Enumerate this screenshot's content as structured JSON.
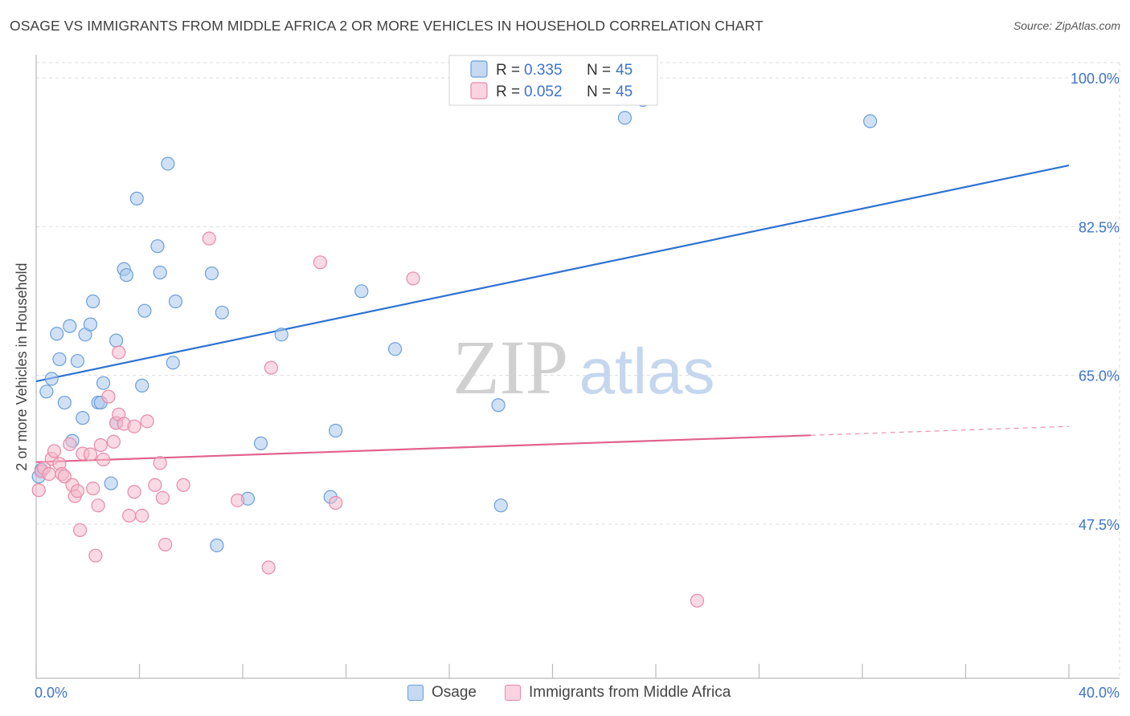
{
  "header": {
    "title": "OSAGE VS IMMIGRANTS FROM MIDDLE AFRICA 2 OR MORE VEHICLES IN HOUSEHOLD CORRELATION CHART",
    "source": "Source: ZipAtlas.com"
  },
  "watermark": {
    "zip": "ZIP",
    "atlas": "atlas"
  },
  "colors": {
    "blue_fill": "#a9c8ee",
    "blue_stroke": "#6b9fd8",
    "blue_line": "#2d72d2",
    "pink_fill": "#f4b9cc",
    "pink_stroke": "#e88aa8",
    "pink_line": "#e0628d",
    "axis_label": "#3f74c9",
    "grid": "#dddddd"
  },
  "chart_data": {
    "type": "scatter",
    "title": "OSAGE VS IMMIGRANTS FROM MIDDLE AFRICA 2 OR MORE VEHICLES IN HOUSEHOLD CORRELATION CHART",
    "xlabel": "",
    "ylabel": "2 or more Vehicles in Household",
    "xlim": [
      0,
      40
    ],
    "ylim": [
      30,
      102
    ],
    "x_tick_labels": [
      "0.0%",
      "40.0%"
    ],
    "y_ticks": [
      47.5,
      65.0,
      82.5,
      100.0
    ],
    "y_tick_labels": [
      "47.5%",
      "65.0%",
      "82.5%",
      "100.0%"
    ],
    "legend_position": "top-center",
    "series": [
      {
        "name": "Osage",
        "color": "blue",
        "r_label": "R =",
        "r_value": "0.335",
        "n_label": "N =",
        "n_value": "45",
        "trend": {
          "x_start": 0,
          "y_start": 64.3,
          "x_end": 40,
          "y_end": 89.7,
          "dashed_from": null
        },
        "points": [
          [
            0.1,
            53.1
          ],
          [
            0.2,
            53.9
          ],
          [
            0.4,
            63.1
          ],
          [
            0.6,
            64.6
          ],
          [
            0.8,
            69.9
          ],
          [
            0.9,
            66.9
          ],
          [
            1.1,
            61.8
          ],
          [
            1.3,
            70.8
          ],
          [
            1.4,
            57.3
          ],
          [
            1.6,
            66.7
          ],
          [
            1.8,
            60.0
          ],
          [
            1.9,
            69.8
          ],
          [
            2.1,
            71.0
          ],
          [
            2.2,
            73.7
          ],
          [
            2.4,
            61.8
          ],
          [
            2.5,
            61.8
          ],
          [
            2.6,
            64.1
          ],
          [
            2.9,
            52.3
          ],
          [
            3.1,
            69.1
          ],
          [
            3.1,
            59.4
          ],
          [
            3.4,
            77.5
          ],
          [
            3.5,
            76.8
          ],
          [
            3.9,
            85.8
          ],
          [
            4.1,
            63.8
          ],
          [
            4.2,
            72.6
          ],
          [
            4.7,
            80.2
          ],
          [
            4.8,
            77.1
          ],
          [
            5.1,
            89.9
          ],
          [
            5.3,
            66.5
          ],
          [
            5.4,
            73.7
          ],
          [
            6.8,
            77.0
          ],
          [
            7.0,
            45.0
          ],
          [
            7.2,
            72.4
          ],
          [
            8.2,
            50.5
          ],
          [
            8.7,
            57.0
          ],
          [
            9.5,
            69.8
          ],
          [
            11.4,
            50.7
          ],
          [
            11.6,
            58.5
          ],
          [
            12.6,
            74.9
          ],
          [
            13.9,
            68.1
          ],
          [
            17.9,
            61.5
          ],
          [
            18.0,
            49.7
          ],
          [
            22.8,
            95.3
          ],
          [
            23.5,
            97.4
          ],
          [
            32.3,
            94.9
          ]
        ]
      },
      {
        "name": "Immigrants from Middle Africa",
        "color": "pink",
        "r_label": "R =",
        "r_value": "0.052",
        "n_label": "N =",
        "n_value": "45",
        "trend": {
          "x_start": 0,
          "y_start": 54.8,
          "x_end": 40,
          "y_end": 59.0,
          "dashed_from": 30.0
        },
        "points": [
          [
            0.1,
            51.5
          ],
          [
            0.2,
            53.7
          ],
          [
            0.3,
            54.1
          ],
          [
            0.5,
            53.4
          ],
          [
            0.6,
            55.2
          ],
          [
            0.7,
            56.1
          ],
          [
            0.9,
            54.6
          ],
          [
            1.0,
            53.4
          ],
          [
            1.1,
            53.1
          ],
          [
            1.3,
            56.9
          ],
          [
            1.4,
            52.1
          ],
          [
            1.5,
            50.8
          ],
          [
            1.6,
            51.4
          ],
          [
            1.7,
            46.8
          ],
          [
            1.8,
            55.8
          ],
          [
            2.1,
            55.7
          ],
          [
            2.2,
            51.7
          ],
          [
            2.3,
            43.8
          ],
          [
            2.4,
            49.7
          ],
          [
            2.5,
            56.8
          ],
          [
            2.6,
            55.1
          ],
          [
            2.8,
            62.5
          ],
          [
            3.0,
            57.2
          ],
          [
            3.1,
            59.4
          ],
          [
            3.2,
            67.7
          ],
          [
            3.2,
            60.4
          ],
          [
            3.4,
            59.3
          ],
          [
            3.6,
            48.5
          ],
          [
            3.8,
            59.0
          ],
          [
            3.8,
            51.3
          ],
          [
            4.1,
            48.5
          ],
          [
            4.3,
            59.6
          ],
          [
            4.6,
            52.1
          ],
          [
            4.8,
            54.7
          ],
          [
            4.9,
            50.6
          ],
          [
            5.0,
            45.1
          ],
          [
            5.7,
            52.1
          ],
          [
            6.7,
            81.1
          ],
          [
            7.8,
            50.3
          ],
          [
            9.1,
            65.9
          ],
          [
            9.0,
            42.4
          ],
          [
            11.0,
            78.3
          ],
          [
            11.6,
            50.0
          ],
          [
            14.6,
            76.4
          ],
          [
            25.6,
            38.5
          ]
        ]
      }
    ]
  }
}
